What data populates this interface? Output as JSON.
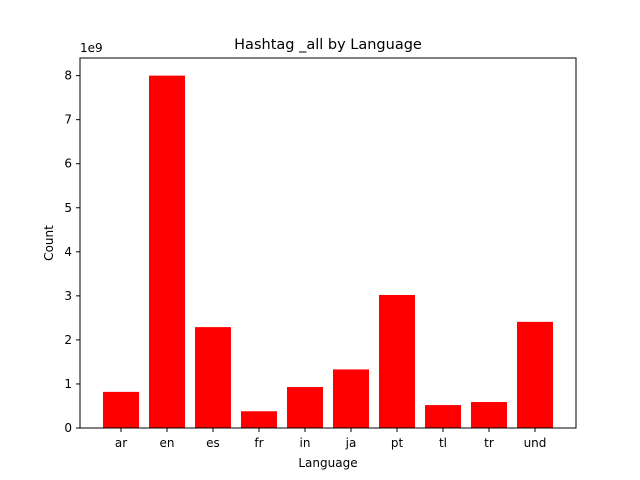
{
  "chart_data": {
    "type": "bar",
    "title": "Hashtag _all by Language",
    "xlabel": "Language",
    "ylabel": "Count",
    "offset_label": "1e9",
    "categories": [
      "ar",
      "en",
      "es",
      "fr",
      "in",
      "ja",
      "pt",
      "tl",
      "tr",
      "und"
    ],
    "values": [
      820000000,
      8000000000,
      2290000000,
      380000000,
      930000000,
      1330000000,
      3020000000,
      520000000,
      590000000,
      2410000000
    ],
    "ylim": [
      0,
      8400000000
    ],
    "yticks": [
      0,
      1,
      2,
      3,
      4,
      5,
      6,
      7,
      8
    ],
    "ytick_scale": 1000000000,
    "bar_color": "#ff0000",
    "grid": false,
    "legend": "none"
  }
}
